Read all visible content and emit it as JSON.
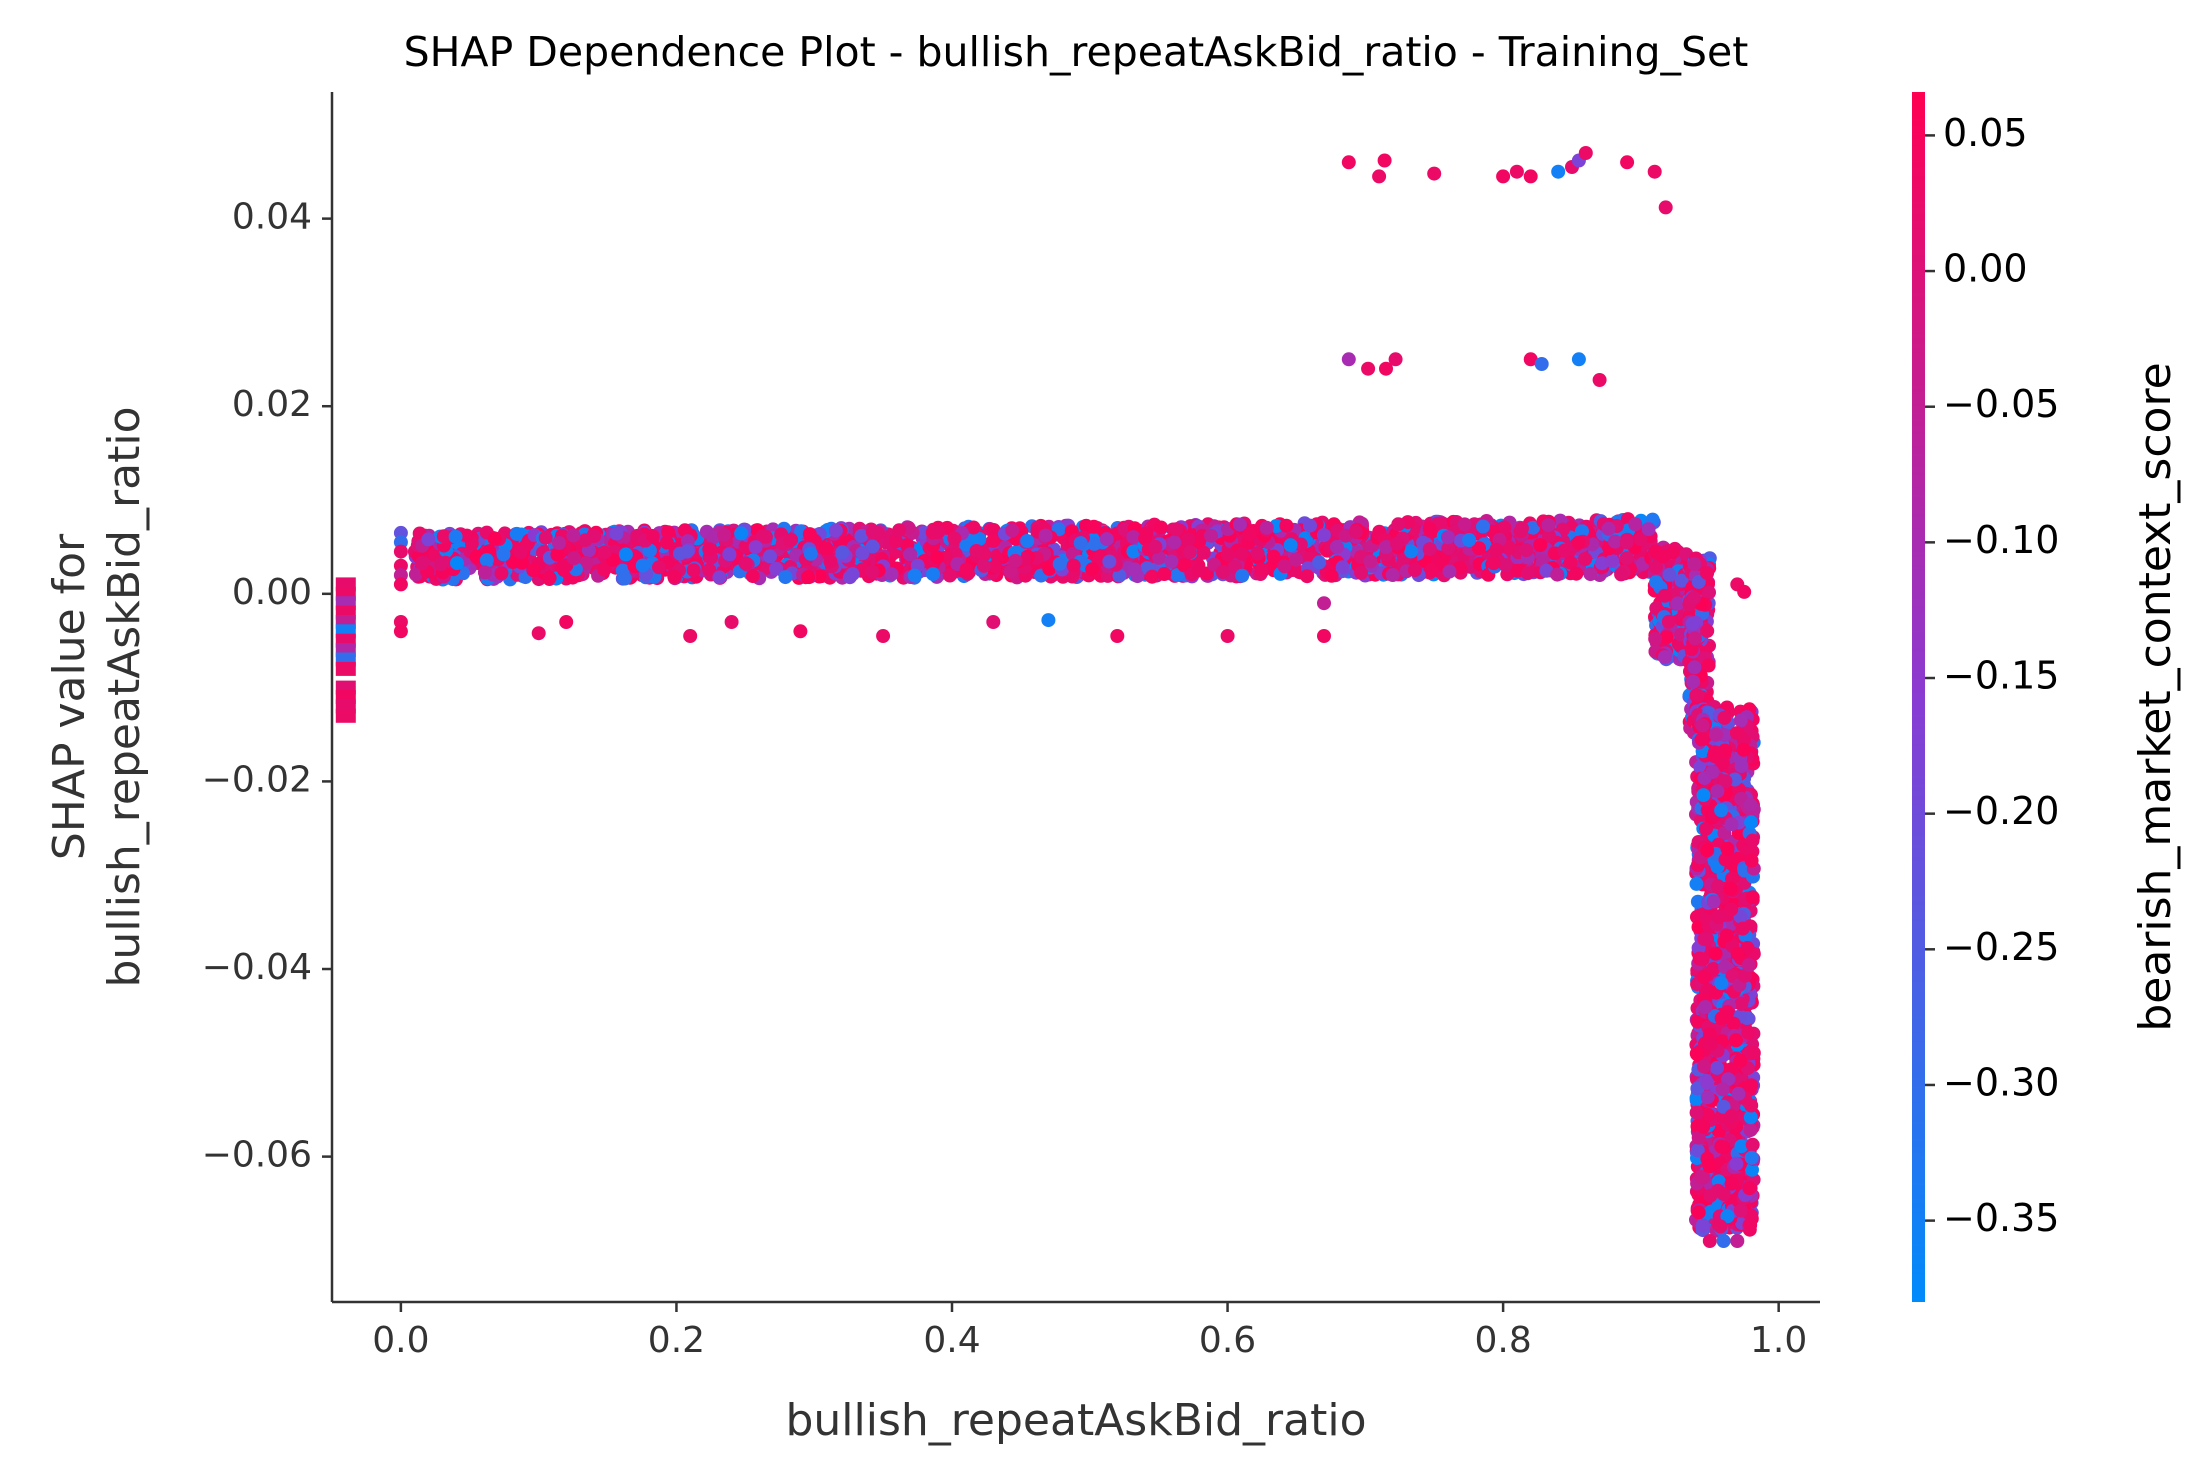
{
  "chart_data": {
    "type": "scatter",
    "title": "SHAP Dependence Plot - bullish_repeatAskBid_ratio - Training_Set",
    "xlabel": "bullish_repeatAskBid_ratio",
    "ylabel_lines": [
      "SHAP value for",
      "bullish_repeatAskBid_ratio"
    ],
    "xlim": [
      -0.05,
      1.03
    ],
    "ylim": [
      -0.0755,
      0.0535
    ],
    "xticks": [
      0.0,
      0.2,
      0.4,
      0.6,
      0.8,
      1.0
    ],
    "xtick_labels": [
      "0.0",
      "0.2",
      "0.4",
      "0.6",
      "0.8",
      "1.0"
    ],
    "yticks": [
      0.04,
      0.02,
      0.0,
      -0.02,
      -0.04,
      -0.06
    ],
    "ytick_labels": [
      "0.04",
      "0.02",
      "0.00",
      "−0.02",
      "−0.04",
      "−0.06"
    ],
    "colorbar": {
      "label": "bearish_market_context_score",
      "range": [
        -0.38,
        0.066
      ],
      "ticks": [
        0.05,
        0.0,
        -0.05,
        -0.1,
        -0.15,
        -0.2,
        -0.25,
        -0.3,
        -0.35
      ],
      "tick_labels": [
        "0.05",
        "0.00",
        "−0.05",
        "−0.10",
        "−0.15",
        "−0.20",
        "−0.25",
        "−0.30",
        "−0.35"
      ],
      "colormap": [
        "#008bfb",
        "#ff0052"
      ]
    },
    "missing_value_points": {
      "x": -0.04,
      "y": [
        0.001,
        0.0,
        -0.001,
        -0.002,
        -0.003,
        -0.004,
        -0.005,
        -0.006,
        -0.007,
        -0.008,
        -0.01,
        -0.011,
        -0.012,
        -0.013
      ],
      "c": [
        0.02,
        0.03,
        -0.1,
        0.03,
        -0.05,
        -0.35,
        0.02,
        -0.08,
        -0.3,
        0.03,
        0.01,
        0.04,
        0.02,
        0.03
      ]
    },
    "representative_points": [
      {
        "x": 0.0,
        "y": 0.0065,
        "c": -0.22
      },
      {
        "x": 0.0,
        "y": 0.0055,
        "c": -0.3
      },
      {
        "x": 0.0,
        "y": 0.0045,
        "c": 0.02
      },
      {
        "x": 0.0,
        "y": 0.003,
        "c": 0.03
      },
      {
        "x": 0.0,
        "y": 0.002,
        "c": -0.05
      },
      {
        "x": 0.0,
        "y": 0.001,
        "c": 0.04
      },
      {
        "x": 0.0,
        "y": -0.003,
        "c": 0.03
      },
      {
        "x": 0.0,
        "y": -0.004,
        "c": 0.04
      },
      {
        "x": 0.02,
        "y": 0.0058,
        "c": -0.18
      },
      {
        "x": 0.1,
        "y": -0.0042,
        "c": 0.03
      },
      {
        "x": 0.12,
        "y": -0.003,
        "c": 0.04
      },
      {
        "x": 0.21,
        "y": -0.0045,
        "c": 0.03
      },
      {
        "x": 0.24,
        "y": -0.003,
        "c": 0.02
      },
      {
        "x": 0.29,
        "y": -0.004,
        "c": 0.04
      },
      {
        "x": 0.35,
        "y": -0.0045,
        "c": 0.03
      },
      {
        "x": 0.43,
        "y": -0.003,
        "c": 0.01
      },
      {
        "x": 0.47,
        "y": -0.0028,
        "c": -0.35
      },
      {
        "x": 0.52,
        "y": -0.0045,
        "c": 0.04
      },
      {
        "x": 0.6,
        "y": -0.0045,
        "c": 0.03
      },
      {
        "x": 0.67,
        "y": -0.0045,
        "c": 0.04
      },
      {
        "x": 0.67,
        "y": -0.001,
        "c": -0.05
      },
      {
        "x": 0.688,
        "y": 0.046,
        "c": 0.04
      },
      {
        "x": 0.71,
        "y": 0.0445,
        "c": 0.03
      },
      {
        "x": 0.714,
        "y": 0.0462,
        "c": 0.04
      },
      {
        "x": 0.75,
        "y": 0.0448,
        "c": 0.03
      },
      {
        "x": 0.8,
        "y": 0.0445,
        "c": 0.04
      },
      {
        "x": 0.81,
        "y": 0.045,
        "c": 0.03
      },
      {
        "x": 0.82,
        "y": 0.0445,
        "c": 0.04
      },
      {
        "x": 0.84,
        "y": 0.045,
        "c": -0.35
      },
      {
        "x": 0.85,
        "y": 0.0455,
        "c": 0.02
      },
      {
        "x": 0.855,
        "y": 0.0462,
        "c": -0.18
      },
      {
        "x": 0.86,
        "y": 0.047,
        "c": 0.03
      },
      {
        "x": 0.89,
        "y": 0.046,
        "c": 0.04
      },
      {
        "x": 0.91,
        "y": 0.045,
        "c": 0.03
      },
      {
        "x": 0.918,
        "y": 0.0412,
        "c": 0.02
      },
      {
        "x": 0.688,
        "y": 0.025,
        "c": -0.1
      },
      {
        "x": 0.702,
        "y": 0.024,
        "c": 0.03
      },
      {
        "x": 0.715,
        "y": 0.024,
        "c": 0.04
      },
      {
        "x": 0.722,
        "y": 0.025,
        "c": 0.02
      },
      {
        "x": 0.82,
        "y": 0.025,
        "c": 0.04
      },
      {
        "x": 0.828,
        "y": 0.0245,
        "c": -0.3
      },
      {
        "x": 0.855,
        "y": 0.025,
        "c": -0.35
      },
      {
        "x": 0.87,
        "y": 0.0228,
        "c": 0.03
      },
      {
        "x": 0.97,
        "y": 0.001,
        "c": 0.03
      },
      {
        "x": 0.975,
        "y": 0.0002,
        "c": 0.04
      },
      {
        "x": 0.95,
        "y": -0.069,
        "c": 0.02
      },
      {
        "x": 0.96,
        "y": -0.069,
        "c": -0.3
      },
      {
        "x": 0.97,
        "y": -0.069,
        "c": -0.05
      }
    ],
    "series_regions": [
      {
        "name": "main band",
        "x": [
          0.01,
          0.91
        ],
        "y_start": [
          0.0015,
          0.0065
        ],
        "y_end": [
          0.002,
          0.008
        ]
      },
      {
        "name": "plateau step",
        "x": [
          0.91,
          0.935
        ],
        "y": [
          -0.007,
          0.005
        ]
      },
      {
        "name": "drop step",
        "x": [
          0.935,
          0.95
        ],
        "y": [
          -0.015,
          0.004
        ]
      },
      {
        "name": "tail column",
        "x": [
          0.94,
          0.982
        ],
        "y": [
          -0.068,
          -0.012
        ]
      }
    ]
  }
}
